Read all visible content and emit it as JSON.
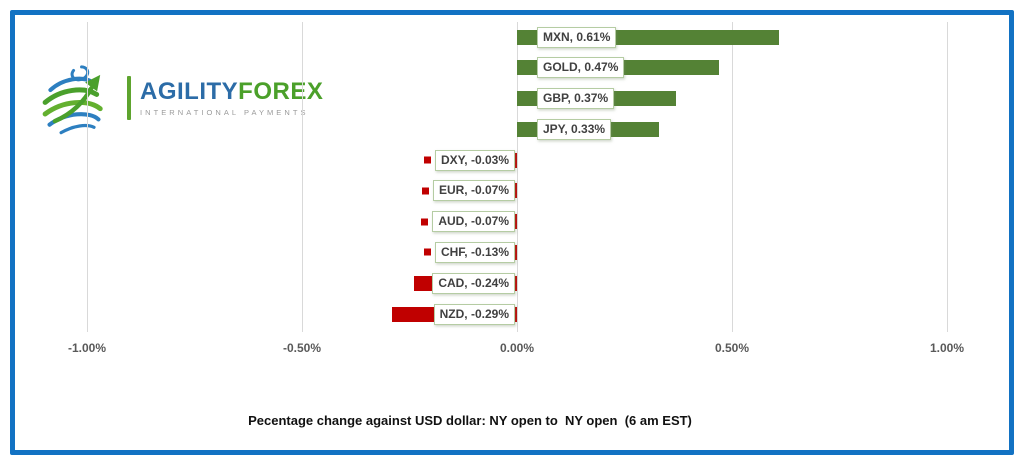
{
  "logo": {
    "brand_primary": "AGILITY",
    "brand_secondary": "FOREX",
    "tagline": "INTERNATIONAL PAYMENTS"
  },
  "chart_data": {
    "type": "bar",
    "orientation": "horizontal",
    "title": "Pecentage change against USD dollar: NY open to  NY open  (6 am EST)",
    "categories": [
      "MXN",
      "GOLD",
      "GBP",
      "JPY",
      "DXY",
      "EUR",
      "AUD",
      "CHF",
      "CAD",
      "NZD"
    ],
    "values": [
      0.61,
      0.47,
      0.37,
      0.33,
      -0.03,
      -0.07,
      -0.07,
      -0.13,
      -0.24,
      -0.29
    ],
    "labels": [
      "MXN, 0.61%",
      "GOLD, 0.47%",
      "GBP, 0.37%",
      "JPY, 0.33%",
      "DXY, -0.03%",
      "EUR, -0.07%",
      "AUD, -0.07%",
      "CHF, -0.13%",
      "CAD, -0.24%",
      "NZD, -0.29%"
    ],
    "x_ticks": [
      "-1.00%",
      "-0.50%",
      "0.00%",
      "0.50%",
      "1.00%"
    ],
    "x_tick_values": [
      -1.0,
      -0.5,
      0.0,
      0.5,
      1.0
    ],
    "xlim": [
      -1.0,
      1.0
    ],
    "grid": true,
    "legend": "none",
    "positive_color": "#548235",
    "negative_color": "#C00000"
  },
  "colors": {
    "frame_border": "#1272c3",
    "gridline": "#d9d9d9",
    "label_box_border": "#b5cca3",
    "label_text": "#404040",
    "axis_text": "#595959",
    "brand_blue": "#2c6ca7",
    "brand_green": "#4ba02a"
  }
}
